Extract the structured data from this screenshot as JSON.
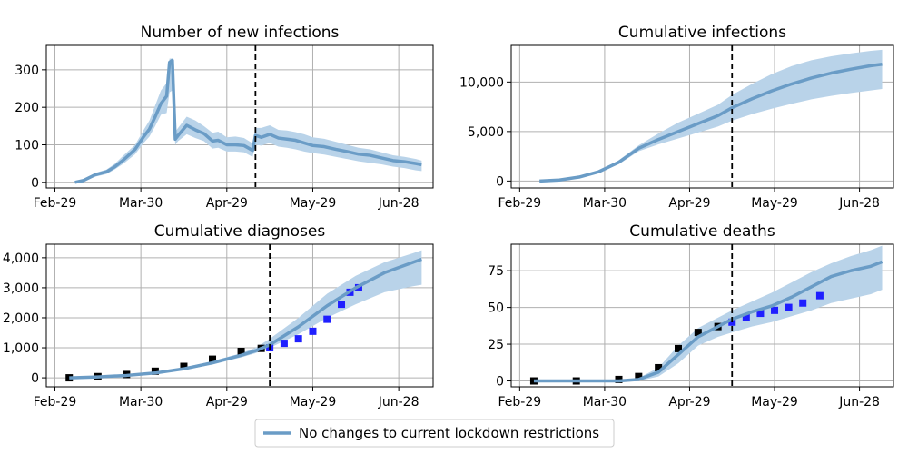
{
  "x_tick_labels": [
    "Feb-29",
    "Mar-30",
    "Apr-29",
    "May-29",
    "Jun-28"
  ],
  "x_tick_days": [
    0,
    30,
    60,
    90,
    120
  ],
  "colors": {
    "median": "#6a9cc6",
    "band": "#b9d3e9",
    "diag_data_recent": "#1f1fff",
    "data_old": "#000000",
    "grid": "#b0b0b0",
    "cutoff": "#000000"
  },
  "legend": {
    "label": "No changes to current lockdown restrictions"
  },
  "chart_data": [
    {
      "type": "line",
      "title": "Number of new infections",
      "ylim": [
        -15,
        365
      ],
      "yticks": [
        0,
        100,
        200,
        300
      ],
      "ytick_labels": [
        "0",
        "100",
        "200",
        "300"
      ],
      "cutoff_x": 70,
      "x": [
        7,
        10,
        14,
        18,
        21,
        24,
        28,
        31,
        33,
        35,
        37,
        39,
        40,
        41,
        42,
        43,
        46,
        49,
        52,
        55,
        57,
        60,
        63,
        66,
        69,
        70,
        72,
        75,
        78,
        81,
        84,
        87,
        90,
        94,
        98,
        102,
        106,
        110,
        114,
        118,
        122,
        126,
        128
      ],
      "median": [
        0,
        5,
        20,
        28,
        42,
        60,
        88,
        122,
        142,
        175,
        210,
        230,
        320,
        325,
        115,
        125,
        152,
        140,
        130,
        110,
        112,
        100,
        100,
        98,
        85,
        125,
        120,
        128,
        118,
        115,
        112,
        105,
        98,
        95,
        88,
        82,
        75,
        72,
        65,
        58,
        55,
        50,
        47
      ],
      "lower": [
        0,
        3,
        15,
        22,
        35,
        50,
        75,
        105,
        122,
        150,
        180,
        185,
        240,
        245,
        100,
        110,
        128,
        118,
        110,
        90,
        92,
        82,
        82,
        80,
        68,
        100,
        98,
        105,
        95,
        92,
        88,
        82,
        78,
        74,
        68,
        62,
        56,
        52,
        48,
        42,
        38,
        32,
        30
      ],
      "upper": [
        2,
        8,
        25,
        34,
        50,
        72,
        100,
        140,
        165,
        205,
        245,
        265,
        330,
        330,
        135,
        145,
        175,
        165,
        150,
        132,
        135,
        120,
        122,
        118,
        104,
        145,
        145,
        152,
        140,
        138,
        134,
        128,
        120,
        116,
        108,
        100,
        92,
        88,
        80,
        72,
        68,
        62,
        58
      ]
    },
    {
      "type": "line",
      "title": "Cumulative infections",
      "ylim": [
        -700,
        13700
      ],
      "yticks": [
        0,
        5000,
        10000
      ],
      "ytick_labels": [
        "0",
        "5,000",
        "10,000"
      ],
      "cutoff_x": 75,
      "x": [
        7,
        14,
        21,
        28,
        35,
        42,
        49,
        56,
        63,
        70,
        75,
        82,
        89,
        96,
        103,
        110,
        117,
        124,
        128
      ],
      "median": [
        0,
        100,
        400,
        950,
        1900,
        3300,
        4200,
        5000,
        5800,
        6600,
        7400,
        8300,
        9100,
        9800,
        10400,
        10900,
        11300,
        11650,
        11800
      ],
      "lower": [
        0,
        80,
        350,
        850,
        1700,
        3000,
        3700,
        4300,
        4900,
        5500,
        6100,
        6750,
        7300,
        7800,
        8250,
        8600,
        8900,
        9150,
        9300
      ],
      "upper": [
        0,
        120,
        460,
        1050,
        2100,
        3600,
        4800,
        5900,
        6800,
        7700,
        8700,
        9800,
        10800,
        11600,
        12200,
        12600,
        12900,
        13150,
        13250
      ]
    },
    {
      "type": "line",
      "title": "Cumulative diagnoses",
      "ylim": [
        -300,
        4450
      ],
      "yticks": [
        0,
        1000,
        2000,
        3000,
        4000
      ],
      "ytick_labels": [
        "0",
        "1,000",
        "2,000",
        "3,000",
        "4,000"
      ],
      "cutoff_x": 75,
      "x": [
        5,
        15,
        25,
        35,
        45,
        55,
        65,
        70,
        75,
        85,
        95,
        105,
        115,
        125,
        128
      ],
      "median": [
        0,
        30,
        80,
        160,
        300,
        500,
        750,
        900,
        1100,
        1700,
        2400,
        3000,
        3500,
        3850,
        3950
      ],
      "lower": [
        0,
        25,
        70,
        140,
        260,
        440,
        680,
        820,
        1000,
        1450,
        2000,
        2450,
        2850,
        3050,
        3100
      ],
      "upper": [
        0,
        35,
        90,
        180,
        340,
        560,
        820,
        1000,
        1300,
        2000,
        2800,
        3400,
        3850,
        4150,
        4250
      ],
      "data_old_x": [
        5,
        15,
        25,
        35,
        45,
        55,
        65,
        72
      ],
      "data_old_y": [
        0,
        40,
        110,
        220,
        380,
        620,
        880,
        980
      ],
      "data_recent_x": [
        75,
        80,
        85,
        90,
        95,
        100,
        103,
        106
      ],
      "data_recent_y": [
        1000,
        1150,
        1300,
        1550,
        1950,
        2450,
        2850,
        3000
      ]
    },
    {
      "type": "line",
      "title": "Cumulative deaths",
      "ylim": [
        -4,
        93
      ],
      "yticks": [
        0,
        25,
        50,
        75
      ],
      "ytick_labels": [
        "0",
        "25",
        "50",
        "75"
      ],
      "cutoff_x": 75,
      "x": [
        5,
        20,
        35,
        42,
        49,
        56,
        63,
        70,
        75,
        82,
        89,
        96,
        103,
        110,
        117,
        124,
        128
      ],
      "median": [
        0,
        0,
        0,
        1,
        6,
        18,
        30,
        37,
        42,
        47,
        51,
        57,
        64,
        71,
        75,
        78,
        81
      ],
      "lower": [
        0,
        0,
        0,
        0,
        3,
        12,
        24,
        30,
        33,
        37,
        40,
        44,
        48,
        53,
        56,
        59,
        62
      ],
      "upper": [
        0,
        0,
        0,
        2,
        9,
        24,
        36,
        43,
        48,
        54,
        60,
        67,
        74,
        80,
        85,
        89,
        92
      ],
      "data_old_x": [
        5,
        20,
        35,
        42,
        49,
        56,
        63,
        70
      ],
      "data_old_y": [
        0,
        0,
        1,
        3,
        9,
        22,
        33,
        37
      ],
      "data_recent_x": [
        75,
        80,
        85,
        90,
        95,
        100,
        106
      ],
      "data_recent_y": [
        40,
        43,
        46,
        48,
        50,
        53,
        58
      ]
    }
  ]
}
